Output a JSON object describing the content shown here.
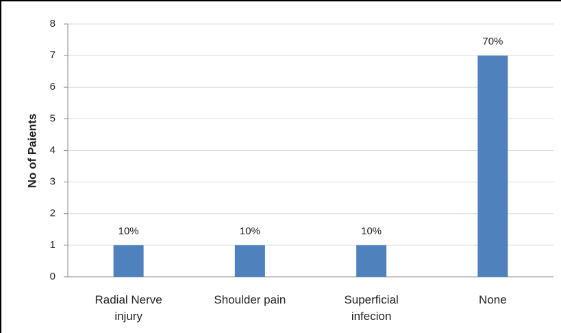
{
  "chart_data": {
    "type": "bar",
    "y_label": "No of Paients",
    "categories": [
      "Radial Nerve injury",
      "Shoulder pain",
      "Superficial infecion",
      "None"
    ],
    "values": [
      1,
      1,
      1,
      7
    ],
    "value_labels": [
      "10%",
      "10%",
      "10%",
      "70%"
    ],
    "color": "#4f81bd",
    "ylim": [
      0,
      8
    ],
    "yticks": [
      0,
      1,
      2,
      3,
      4,
      5,
      6,
      7,
      8
    ],
    "grid": true
  }
}
